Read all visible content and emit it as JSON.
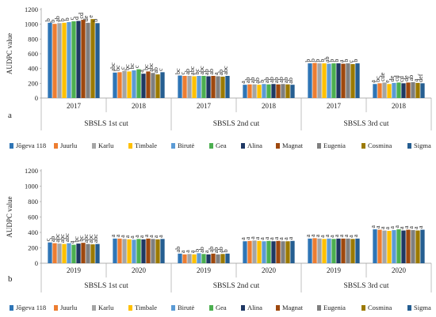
{
  "colors": [
    "#2E75B6",
    "#ED7D31",
    "#A5A5A5",
    "#FFC000",
    "#5B9BD5",
    "#4CAF50",
    "#1F3864",
    "#9E480E",
    "#7F7F7F",
    "#9C7A00",
    "#255E91"
  ],
  "legend_items": [
    "Jõgeva 118",
    "Juurlu",
    "Karlu",
    "Timbale",
    "Birutė",
    "Gea",
    "Alina",
    "Magnat",
    "Eugenia",
    "Cosmina",
    "Sigma"
  ],
  "chart_data": [
    {
      "type": "bar",
      "panel_label": "a",
      "ylabel": "AUDPC value",
      "ylim": [
        0,
        1200
      ],
      "yticks": [
        0,
        200,
        400,
        600,
        800,
        1000,
        1200
      ],
      "legend_position": "bottom",
      "groups": [
        {
          "year": "2017",
          "cut": "SBSLS 1st cut",
          "values": [
            1020,
            1005,
            1015,
            1020,
            1030,
            1040,
            1045,
            1060,
            1020,
            1070,
            1015
          ],
          "letters": [
            "b",
            "b",
            "ab",
            "b",
            "b",
            "c",
            "d",
            "cd",
            "de",
            "e",
            "b"
          ]
        },
        {
          "year": "2018",
          "cut": "SBSLS 1st cut",
          "values": [
            345,
            350,
            370,
            360,
            375,
            390,
            330,
            360,
            340,
            320,
            350
          ],
          "letters": [
            "abc",
            "bc",
            "c",
            "bc",
            "bc",
            "c",
            "a",
            "bc",
            "abc",
            "ab",
            "c"
          ]
        },
        {
          "year": "2017",
          "cut": "SBSLS 2nd cut",
          "values": [
            305,
            300,
            300,
            295,
            300,
            300,
            295,
            300,
            295,
            290,
            300
          ],
          "letters": [
            "bc",
            "c",
            "ab",
            "abc",
            "bc",
            "abc",
            "ab",
            "ab",
            "a",
            "ab",
            "abc"
          ]
        },
        {
          "year": "2018",
          "cut": "SBSLS 2nd cut",
          "values": [
            180,
            185,
            185,
            180,
            190,
            185,
            190,
            185,
            190,
            185,
            180
          ],
          "letters": [
            "a",
            "ab",
            "ab",
            "ab",
            "b",
            "ab",
            "ab",
            "ab",
            "ab",
            "ab",
            "ab"
          ]
        },
        {
          "year": "2017",
          "cut": "SBSLS 3rd cut",
          "values": [
            470,
            475,
            470,
            470,
            465,
            470,
            470,
            465,
            470,
            460,
            470
          ],
          "letters": [
            "b",
            "b",
            "b",
            "b",
            "ab",
            "b",
            "b",
            "a",
            "b",
            "c",
            "b"
          ]
        },
        {
          "year": "2018",
          "cut": "SBSLS 3rd cut",
          "values": [
            190,
            200,
            210,
            190,
            205,
            210,
            200,
            210,
            215,
            205,
            200
          ],
          "letters": [
            "a",
            "bc",
            "cde",
            "e",
            "de",
            "cd",
            "cd",
            "de",
            "ab",
            "a",
            "def"
          ]
        }
      ]
    },
    {
      "type": "bar",
      "panel_label": "b",
      "ylabel": "AUDPC value",
      "ylim": [
        0,
        1200
      ],
      "yticks": [
        0,
        200,
        400,
        600,
        800,
        1000,
        1200
      ],
      "legend_position": "bottom",
      "groups": [
        {
          "year": "2019",
          "cut": "SBSLS 1st cut",
          "values": [
            270,
            260,
            255,
            250,
            260,
            240,
            255,
            265,
            250,
            245,
            250
          ],
          "letters": [
            "c",
            "ab",
            "abc",
            "abc",
            "abc",
            "a",
            "bc",
            "bc",
            "abc",
            "abc",
            "abc"
          ]
        },
        {
          "year": "2020",
          "cut": "SBSLS 1st cut",
          "values": [
            320,
            320,
            315,
            310,
            305,
            315,
            310,
            320,
            315,
            310,
            315
          ],
          "letters": [
            "a",
            "a",
            "a",
            "a",
            "a",
            "a",
            "a",
            "a",
            "a",
            "a",
            "a"
          ]
        },
        {
          "year": "2019",
          "cut": "SBSLS 2nd cut",
          "values": [
            125,
            115,
            120,
            115,
            130,
            120,
            115,
            125,
            115,
            120,
            125
          ],
          "letters": [
            "ab",
            "a",
            "a",
            "a",
            "b",
            "ab",
            "a",
            "ab",
            "ab",
            "ab",
            "b"
          ]
        },
        {
          "year": "2020",
          "cut": "SBSLS 2nd cut",
          "values": [
            285,
            290,
            295,
            290,
            285,
            290,
            285,
            290,
            285,
            285,
            290
          ],
          "letters": [
            "a",
            "a",
            "a",
            "a",
            "a",
            "a",
            "a",
            "a",
            "a",
            "a",
            "a"
          ]
        },
        {
          "year": "2019",
          "cut": "SBSLS 3rd cut",
          "values": [
            320,
            325,
            320,
            315,
            320,
            315,
            320,
            320,
            320,
            315,
            320
          ],
          "letters": [
            "a",
            "a",
            "a",
            "a",
            "a",
            "a",
            "a",
            "a",
            "a",
            "a",
            "a"
          ]
        },
        {
          "year": "2020",
          "cut": "SBSLS 3rd cut",
          "values": [
            440,
            435,
            425,
            420,
            430,
            440,
            425,
            435,
            430,
            425,
            435
          ],
          "letters": [
            "a",
            "a",
            "a",
            "a",
            "a",
            "a",
            "a",
            "a",
            "a",
            "a",
            "a"
          ]
        }
      ]
    }
  ]
}
